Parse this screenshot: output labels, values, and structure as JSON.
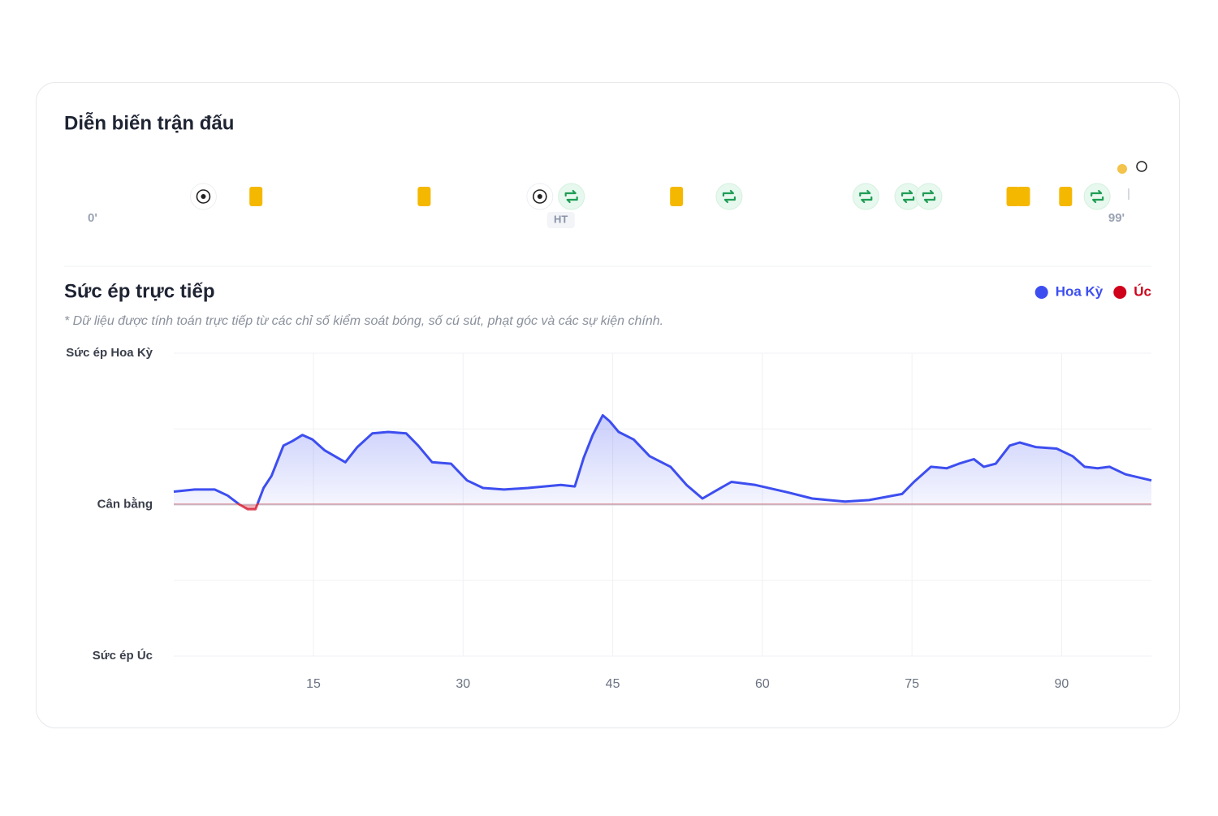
{
  "timeline": {
    "title": "Diễn biến trận đấu",
    "range": [
      0,
      99
    ],
    "start_label": "0'",
    "end_label": "99'",
    "halftime": {
      "minute": 45,
      "label": "HT"
    },
    "current_minute": 99,
    "events": [
      {
        "type": "goal",
        "minute": 11
      },
      {
        "type": "yellow",
        "minute": 16
      },
      {
        "type": "yellow",
        "minute": 32
      },
      {
        "type": "goal",
        "minute": 43
      },
      {
        "type": "sub",
        "minute": 46
      },
      {
        "type": "yellow",
        "minute": 56
      },
      {
        "type": "sub",
        "minute": 61
      },
      {
        "type": "sub",
        "minute": 74
      },
      {
        "type": "sub",
        "minute": 78
      },
      {
        "type": "sub",
        "minute": 80
      },
      {
        "type": "yellow",
        "minute": 88
      },
      {
        "type": "yellow",
        "minute": 89
      },
      {
        "type": "yellow",
        "minute": 93
      },
      {
        "type": "sub",
        "minute": 96
      }
    ]
  },
  "chart_data": {
    "type": "line",
    "title": "Sức ép trực tiếp",
    "subtitle": "* Dữ liệu được tính toán trực tiếp từ các chỉ số kiểm soát bóng, số cú sút, phạt góc và các sự kiện chính.",
    "x": [
      1,
      3.1,
      5.1,
      6.4,
      7.6,
      8.4,
      9.2,
      10,
      10.8,
      12,
      12.9,
      13.9,
      14.9,
      16.1,
      17.4,
      18.2,
      19.4,
      20.9,
      22.5,
      24.3,
      25.5,
      26.9,
      28.8,
      30.4,
      32,
      34.1,
      36.5,
      39.8,
      41.2,
      42.1,
      43,
      44,
      44.7,
      45.6,
      47.1,
      48.7,
      50.8,
      52.4,
      54,
      55.3,
      56.9,
      59.3,
      62.6,
      65,
      68.3,
      70.7,
      74,
      75.2,
      76.9,
      78.5,
      79.7,
      81.2,
      82.2,
      83.4,
      84.8,
      85.8,
      87.4,
      89.5,
      91.1,
      92.3,
      93.6,
      94.8,
      96.4,
      99
    ],
    "series": [
      {
        "name": "Hoa Kỳ",
        "color": "#3d4ef0",
        "values": [
          8.6,
          10,
          10,
          6,
          0,
          -3,
          -3,
          11,
          19,
          39,
          42,
          46,
          43,
          36,
          31,
          28,
          38,
          47,
          48,
          47,
          39,
          28,
          27,
          16,
          11,
          10,
          11,
          13,
          12,
          31,
          46,
          59,
          55,
          48,
          43,
          32,
          25,
          13,
          4,
          9,
          15,
          13,
          8,
          4,
          2,
          3,
          7,
          15,
          25,
          24,
          27,
          30,
          25,
          27,
          39,
          41,
          38,
          37,
          32,
          25,
          24,
          25,
          20,
          16
        ]
      },
      {
        "name": "Úc",
        "color": "#d0021b"
      }
    ],
    "xlim": [
      1,
      99
    ],
    "xticks": [
      15,
      30,
      45,
      60,
      75,
      90
    ],
    "ylim": [
      -100,
      100
    ],
    "yticks": [
      {
        "value": 100,
        "label": "Sức ép Hoa Kỳ"
      },
      {
        "value": 0,
        "label": "Cân bằng"
      },
      {
        "value": -100,
        "label": "Sức ép Úc"
      }
    ],
    "ygrid": [
      -100,
      -50,
      0,
      50,
      100
    ],
    "grid": true
  }
}
